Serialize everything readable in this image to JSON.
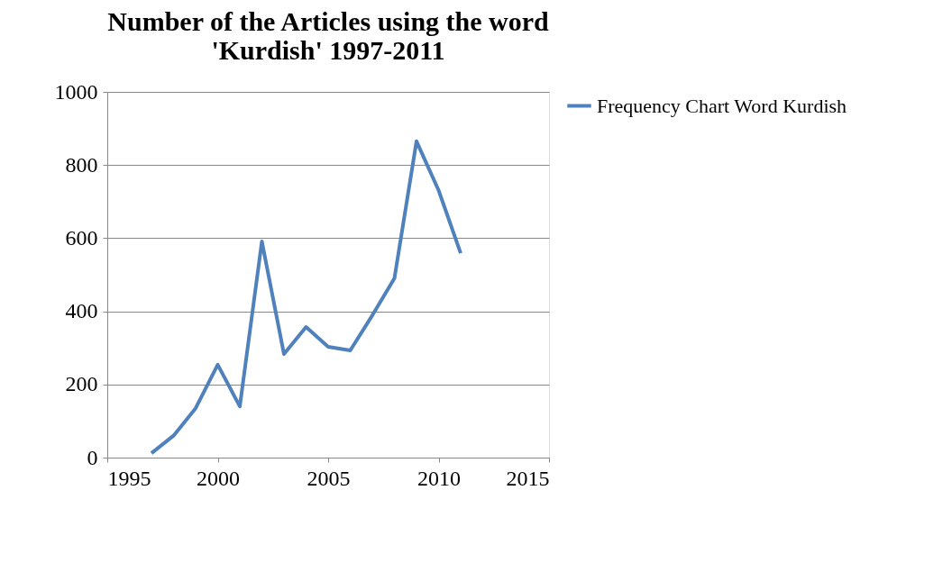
{
  "chart_data": {
    "type": "line",
    "title": "Number of the Articles using the word 'Kurdish' 1997-2011",
    "x": [
      1997,
      1998,
      1999,
      2000,
      2001,
      2002,
      2003,
      2004,
      2005,
      2006,
      2007,
      2008,
      2009,
      2010,
      2011
    ],
    "series": [
      {
        "name": "Frequency Chart Word Kurdish",
        "color": "#4f81bd",
        "values": [
          12,
          60,
          135,
          254,
          140,
          591,
          283,
          357,
          303,
          293,
          389,
          490,
          865,
          731,
          559
        ]
      }
    ],
    "xlim": [
      1995,
      2015
    ],
    "xticks": [
      1995,
      2000,
      2005,
      2010,
      2015
    ],
    "ylim": [
      0,
      1000
    ],
    "yticks": [
      0,
      200,
      400,
      600,
      800,
      1000
    ],
    "grid": "y",
    "legend": "right",
    "marker": "none",
    "line_style": "solid"
  }
}
